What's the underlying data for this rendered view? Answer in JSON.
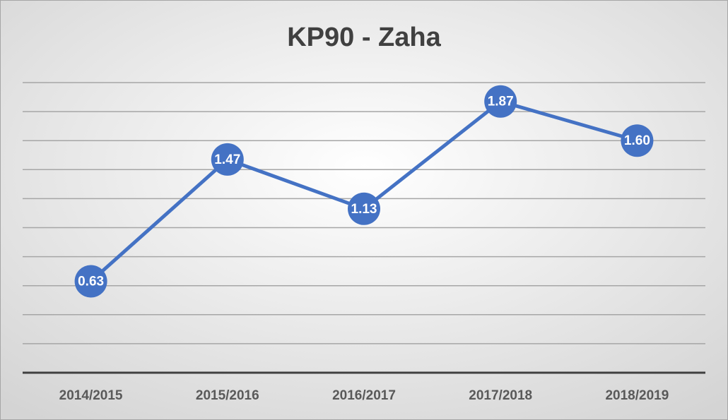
{
  "chart_data": {
    "type": "line",
    "title": "KP90 - Zaha",
    "categories": [
      "2014/2015",
      "2015/2016",
      "2016/2017",
      "2017/2018",
      "2018/2019"
    ],
    "values": [
      0.63,
      1.47,
      1.13,
      1.87,
      1.6
    ],
    "value_labels": [
      "0.63",
      "1.47",
      "1.13",
      "1.87",
      "1.60"
    ],
    "color": "#4472c4",
    "ylim": [
      0,
      2
    ],
    "yticks": [
      0,
      0.2,
      0.4,
      0.6,
      0.8,
      1,
      1.2,
      1.4,
      1.6,
      1.8,
      2
    ],
    "grid": true
  }
}
